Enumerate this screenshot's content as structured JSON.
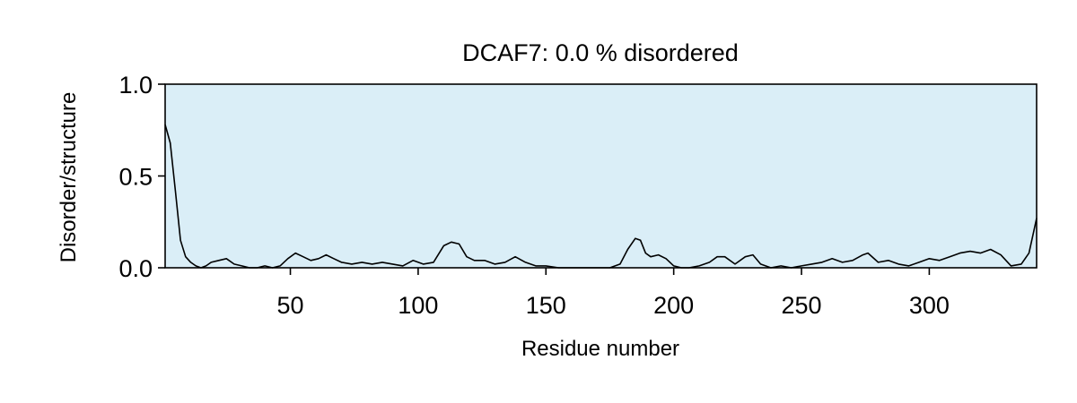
{
  "chart_data": {
    "type": "line",
    "title": "DCAF7: 0.0 % disordered",
    "xlabel": "Residue number",
    "ylabel": "Disorder/structure",
    "xlim": [
      1,
      342
    ],
    "ylim": [
      0,
      1
    ],
    "x_ticks": [
      50,
      100,
      150,
      200,
      250,
      300
    ],
    "x_tick_labels": [
      "50",
      "100",
      "150",
      "200",
      "250",
      "300"
    ],
    "y_ticks": [
      0,
      0.5,
      1
    ],
    "y_tick_labels": [
      "0.0",
      "0.5",
      "1.0"
    ],
    "background_color": "#daeef7",
    "line_color": "#000000",
    "grid": false,
    "legend": "none",
    "series": [
      {
        "x": [
          1,
          3,
          5,
          7,
          9,
          11,
          13,
          15,
          17,
          19,
          22,
          25,
          28,
          31,
          34,
          37,
          40,
          43,
          46,
          49,
          52,
          55,
          58,
          61,
          64,
          67,
          70,
          74,
          78,
          82,
          86,
          90,
          94,
          98,
          102,
          106,
          110,
          113,
          116,
          119,
          122,
          126,
          130,
          134,
          138,
          142,
          146,
          150,
          155,
          160,
          165,
          170,
          175,
          179,
          182,
          185,
          187,
          189,
          191,
          194,
          197,
          200,
          203,
          206,
          210,
          214,
          217,
          220,
          224,
          228,
          231,
          234,
          238,
          242,
          246,
          250,
          254,
          258,
          262,
          266,
          270,
          274,
          276,
          280,
          284,
          288,
          292,
          296,
          300,
          304,
          308,
          312,
          316,
          320,
          324,
          328,
          332,
          336,
          339,
          342
        ],
        "y": [
          0.78,
          0.68,
          0.42,
          0.15,
          0.06,
          0.03,
          0.01,
          0.0,
          0.01,
          0.03,
          0.04,
          0.05,
          0.02,
          0.01,
          0.0,
          0.0,
          0.01,
          0.0,
          0.01,
          0.05,
          0.08,
          0.06,
          0.04,
          0.05,
          0.07,
          0.05,
          0.03,
          0.02,
          0.03,
          0.02,
          0.03,
          0.02,
          0.01,
          0.04,
          0.02,
          0.03,
          0.12,
          0.14,
          0.13,
          0.06,
          0.04,
          0.04,
          0.02,
          0.03,
          0.06,
          0.03,
          0.01,
          0.01,
          0.0,
          0.0,
          0.0,
          0.0,
          0.0,
          0.02,
          0.1,
          0.16,
          0.15,
          0.08,
          0.06,
          0.07,
          0.05,
          0.01,
          0.0,
          0.0,
          0.01,
          0.03,
          0.06,
          0.06,
          0.02,
          0.06,
          0.07,
          0.02,
          0.0,
          0.01,
          0.0,
          0.01,
          0.02,
          0.03,
          0.05,
          0.03,
          0.04,
          0.07,
          0.08,
          0.03,
          0.04,
          0.02,
          0.01,
          0.03,
          0.05,
          0.04,
          0.06,
          0.08,
          0.09,
          0.08,
          0.1,
          0.07,
          0.01,
          0.02,
          0.08,
          0.27
        ]
      }
    ]
  }
}
